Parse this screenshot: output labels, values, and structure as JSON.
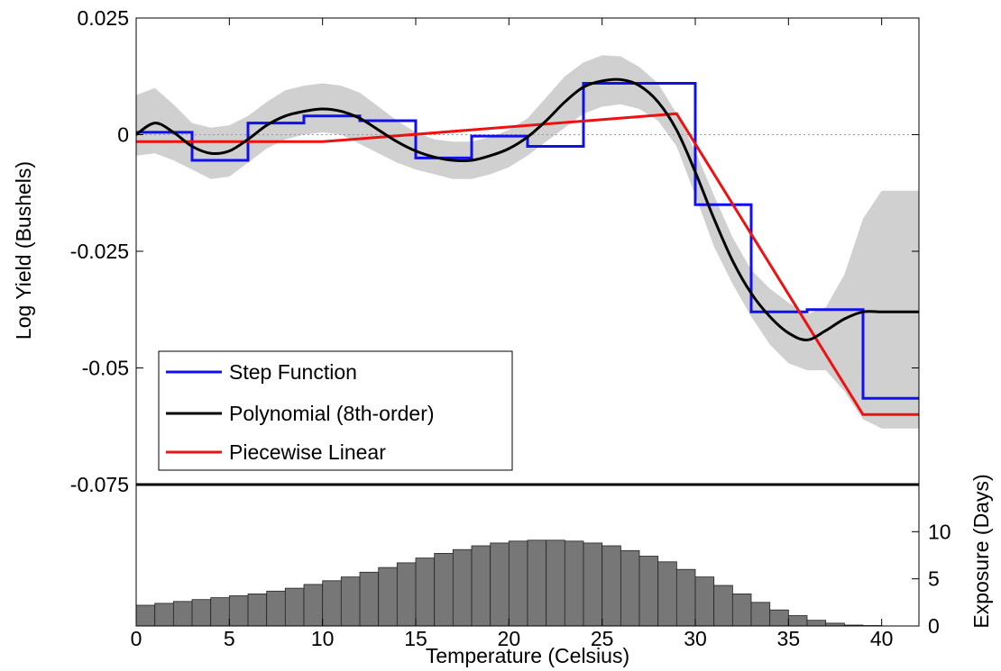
{
  "chart_data": [
    {
      "type": "line",
      "xlabel": "Temperature (Celsius)",
      "ylabel": "Log Yield (Bushels)",
      "xlim": [
        0,
        42
      ],
      "ylim": [
        -0.075,
        0.025
      ],
      "xticks": [
        0,
        5,
        10,
        15,
        20,
        25,
        30,
        35,
        40
      ],
      "yticks": [
        0.025,
        0,
        -0.025,
        -0.05,
        -0.075
      ],
      "ytick_labels": [
        "0.025",
        "0",
        "-0.025",
        "-0.05",
        "-0.075"
      ],
      "reference_line": {
        "y": 0,
        "style": "dotted"
      },
      "legend": {
        "placement": "lower-left"
      },
      "colors": {
        "step": "#1010ee",
        "poly": "#000000",
        "linear": "#ee1111",
        "band": "#d0d0d0"
      },
      "series": [
        {
          "name": "Step Function",
          "kind": "step",
          "edges": [
            0,
            3,
            6,
            9,
            12,
            15,
            18,
            21,
            24,
            30,
            33,
            36,
            39,
            42
          ],
          "values": [
            0.0005,
            -0.0055,
            0.0025,
            0.004,
            0.003,
            -0.005,
            -0.0003,
            -0.0025,
            0.011,
            -0.015,
            -0.038,
            -0.0375,
            -0.0565
          ]
        },
        {
          "name": "Polynomial (8th-order)",
          "kind": "curve",
          "x": [
            0,
            1,
            2,
            3,
            4,
            5,
            6,
            7,
            8,
            9,
            10,
            11,
            12,
            13,
            14,
            15,
            16,
            17,
            18,
            19,
            20,
            21,
            22,
            23,
            24,
            25,
            26,
            27,
            28,
            29,
            30,
            31,
            32,
            33,
            34,
            35,
            36,
            37,
            38,
            39,
            40,
            41,
            42
          ],
          "y": [
            0.0,
            0.0025,
            0.0005,
            -0.0025,
            -0.004,
            -0.0035,
            -0.001,
            0.002,
            0.004,
            0.005,
            0.0055,
            0.005,
            0.0035,
            0.001,
            -0.0015,
            -0.0035,
            -0.0048,
            -0.0055,
            -0.0055,
            -0.0045,
            -0.003,
            -0.0005,
            0.003,
            0.007,
            0.0102,
            0.0115,
            0.0118,
            0.0105,
            0.007,
            0.001,
            -0.008,
            -0.018,
            -0.027,
            -0.034,
            -0.039,
            -0.0425,
            -0.044,
            -0.042,
            -0.0395,
            -0.038,
            -0.038,
            -0.038,
            -0.038
          ]
        },
        {
          "name": "Piecewise Linear",
          "kind": "piecewise",
          "x": [
            0,
            10,
            29,
            39,
            42
          ],
          "y": [
            -0.0015,
            -0.0015,
            0.0045,
            -0.06,
            -0.06
          ]
        }
      ],
      "confidence_band": {
        "x": [
          0,
          1,
          2,
          3,
          4,
          5,
          6,
          7,
          8,
          9,
          10,
          11,
          12,
          13,
          14,
          15,
          16,
          17,
          18,
          19,
          20,
          21,
          22,
          23,
          24,
          25,
          26,
          27,
          28,
          29,
          30,
          31,
          32,
          33,
          34,
          35,
          36,
          37,
          38,
          39,
          40,
          41,
          42
        ],
        "upper": [
          0.0085,
          0.01,
          0.0065,
          0.0025,
          0.0015,
          0.002,
          0.004,
          0.007,
          0.0095,
          0.0105,
          0.011,
          0.0105,
          0.009,
          0.006,
          0.003,
          0.0005,
          -0.001,
          -0.0015,
          -0.0015,
          -0.0005,
          0.001,
          0.0035,
          0.008,
          0.0125,
          0.0155,
          0.017,
          0.0168,
          0.0145,
          0.011,
          0.0045,
          -0.0035,
          -0.013,
          -0.022,
          -0.029,
          -0.033,
          -0.036,
          -0.0385,
          -0.037,
          -0.03,
          -0.018,
          -0.012,
          -0.012,
          -0.012
        ],
        "lower": [
          -0.0045,
          -0.004,
          -0.0055,
          -0.0075,
          -0.0095,
          -0.009,
          -0.006,
          -0.003,
          -0.001,
          0.0,
          0.0005,
          0.0,
          -0.002,
          -0.004,
          -0.006,
          -0.0075,
          -0.0085,
          -0.0095,
          -0.0095,
          -0.0085,
          -0.007,
          -0.0045,
          -0.0015,
          0.0015,
          0.0045,
          0.006,
          0.0065,
          0.0055,
          0.003,
          -0.0025,
          -0.013,
          -0.024,
          -0.032,
          -0.039,
          -0.045,
          -0.049,
          -0.0505,
          -0.0505,
          -0.055,
          -0.061,
          -0.063,
          -0.063,
          -0.063
        ]
      }
    },
    {
      "type": "bar",
      "ylabel": "Exposure (Days)",
      "ylim": [
        0,
        15
      ],
      "yticks": [
        0,
        5,
        10
      ],
      "bin_start": 0,
      "bin_width": 1,
      "bar_color": "#777777",
      "values": [
        2.2,
        2.4,
        2.6,
        2.8,
        3.0,
        3.2,
        3.4,
        3.7,
        4.0,
        4.4,
        4.8,
        5.2,
        5.7,
        6.2,
        6.7,
        7.2,
        7.7,
        8.1,
        8.5,
        8.8,
        9.0,
        9.1,
        9.1,
        9.0,
        8.8,
        8.5,
        8.0,
        7.4,
        6.8,
        6.0,
        5.2,
        4.3,
        3.4,
        2.5,
        1.7,
        1.1,
        0.6,
        0.3,
        0.1,
        0.05
      ]
    }
  ]
}
